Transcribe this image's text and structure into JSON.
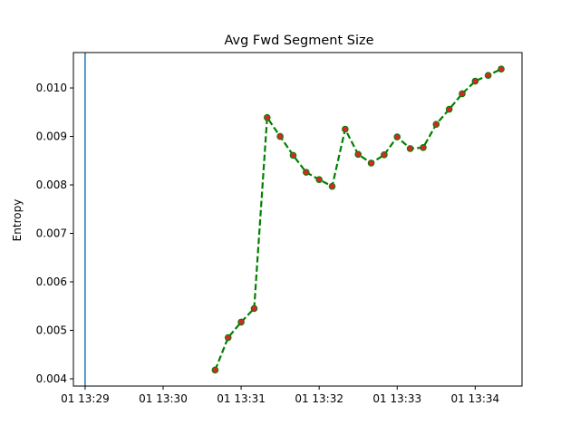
{
  "chart_data": {
    "type": "line",
    "title": "Avg Fwd Segment Size",
    "xlabel": "",
    "ylabel": "Entropy",
    "x_axis_type": "time",
    "xlim": [
      "01 13:28:51",
      "01 13:34:36"
    ],
    "ylim": [
      0.00385,
      0.01073
    ],
    "x_ticks": [
      {
        "value": "01 13:29:00",
        "label": "01 13:29"
      },
      {
        "value": "01 13:30:00",
        "label": "01 13:30"
      },
      {
        "value": "01 13:31:00",
        "label": "01 13:31"
      },
      {
        "value": "01 13:32:00",
        "label": "01 13:32"
      },
      {
        "value": "01 13:33:00",
        "label": "01 13:33"
      },
      {
        "value": "01 13:34:00",
        "label": "01 13:34"
      }
    ],
    "y_ticks": [
      {
        "value": 0.004,
        "label": "0.004"
      },
      {
        "value": 0.005,
        "label": "0.005"
      },
      {
        "value": 0.006,
        "label": "0.006"
      },
      {
        "value": 0.007,
        "label": "0.007"
      },
      {
        "value": 0.008,
        "label": "0.008"
      },
      {
        "value": 0.009,
        "label": "0.009"
      },
      {
        "value": 0.01,
        "label": "0.010"
      }
    ],
    "grid": false,
    "vline": {
      "x": "01 13:29:00",
      "color": "#1f77b4"
    },
    "series": [
      {
        "line_color": "#008000",
        "line_style": "dashed",
        "marker_color": "#d62728",
        "points": [
          {
            "x": "01 13:30:40",
            "y": 0.00418
          },
          {
            "x": "01 13:30:50",
            "y": 0.00485
          },
          {
            "x": "01 13:31:00",
            "y": 0.00517
          },
          {
            "x": "01 13:31:10",
            "y": 0.00545
          },
          {
            "x": "01 13:31:20",
            "y": 0.00939
          },
          {
            "x": "01 13:31:30",
            "y": 0.009
          },
          {
            "x": "01 13:31:40",
            "y": 0.00861
          },
          {
            "x": "01 13:31:50",
            "y": 0.00826
          },
          {
            "x": "01 13:32:00",
            "y": 0.00811
          },
          {
            "x": "01 13:32:10",
            "y": 0.00797
          },
          {
            "x": "01 13:32:20",
            "y": 0.00915
          },
          {
            "x": "01 13:32:30",
            "y": 0.00863
          },
          {
            "x": "01 13:32:40",
            "y": 0.00845
          },
          {
            "x": "01 13:32:50",
            "y": 0.00862
          },
          {
            "x": "01 13:33:00",
            "y": 0.00899
          },
          {
            "x": "01 13:33:10",
            "y": 0.00875
          },
          {
            "x": "01 13:33:20",
            "y": 0.00877
          },
          {
            "x": "01 13:33:30",
            "y": 0.00925
          },
          {
            "x": "01 13:33:40",
            "y": 0.00956
          },
          {
            "x": "01 13:33:50",
            "y": 0.00988
          },
          {
            "x": "01 13:34:00",
            "y": 0.01014
          },
          {
            "x": "01 13:34:10",
            "y": 0.01026
          },
          {
            "x": "01 13:34:20",
            "y": 0.01039
          }
        ]
      }
    ]
  }
}
